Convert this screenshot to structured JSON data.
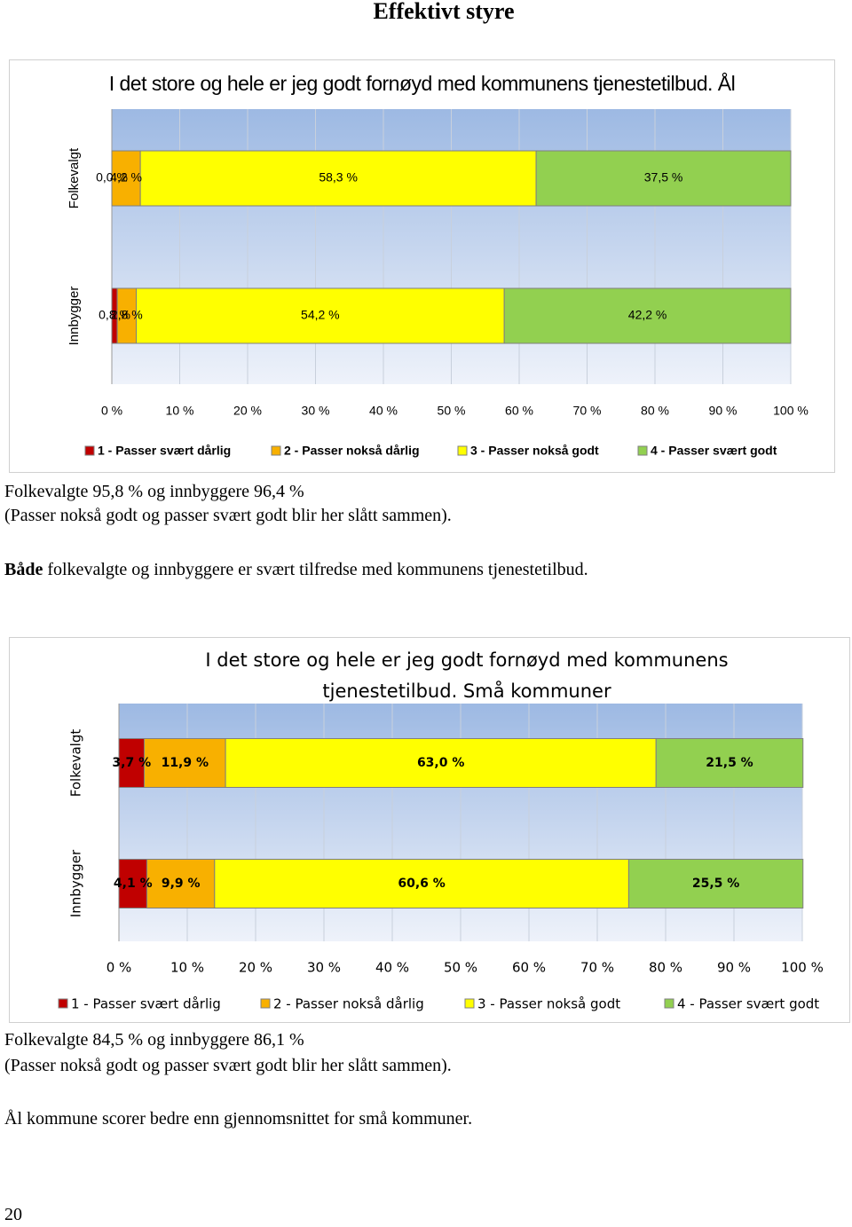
{
  "heading": "Effektivt styre",
  "chart_data": [
    {
      "type": "stacked-bar-horizontal",
      "title": "I det store og hele er jeg godt fornøyd med kommunens tjenestetilbud. Ål",
      "categories": [
        "Folkevalgt",
        "Innbygger"
      ],
      "series": [
        {
          "name": "1 - Passer svært dårlig",
          "color": "#c00000",
          "values": [
            0.0,
            0.8
          ],
          "value_labels": [
            "0,0 %",
            "0,8 %"
          ]
        },
        {
          "name": "2 - Passer nokså dårlig",
          "color": "#f8b000",
          "values": [
            4.2,
            2.8
          ],
          "value_labels": [
            "4,2 %",
            "2,8 %"
          ]
        },
        {
          "name": "3 - Passer nokså godt",
          "color": "#ffff00",
          "values": [
            58.3,
            54.2
          ],
          "value_labels": [
            "58,3 %",
            "54,2 %"
          ]
        },
        {
          "name": "4 - Passer svært godt",
          "color": "#92d050",
          "values": [
            37.5,
            42.2
          ],
          "value_labels": [
            "37,5 %",
            "42,2 %"
          ]
        }
      ],
      "xlim": [
        0,
        100
      ],
      "xticks": [
        {
          "value": 0,
          "label": "0 %"
        },
        {
          "value": 10,
          "label": "10 %"
        },
        {
          "value": 20,
          "label": "20 %"
        },
        {
          "value": 30,
          "label": "30 %"
        },
        {
          "value": 40,
          "label": "40 %"
        },
        {
          "value": 50,
          "label": "50 %"
        },
        {
          "value": 60,
          "label": "60 %"
        },
        {
          "value": 70,
          "label": "70 %"
        },
        {
          "value": 80,
          "label": "80 %"
        },
        {
          "value": 90,
          "label": "90 %"
        },
        {
          "value": 100,
          "label": "100 %"
        }
      ],
      "grid": true,
      "legend": "bottom"
    },
    {
      "type": "stacked-bar-horizontal",
      "title": "I det store og hele er jeg godt fornøyd med kommunens tjenestetilbud. Små kommuner",
      "categories": [
        "Folkevalgt",
        "Innbygger"
      ],
      "series": [
        {
          "name": "1 - Passer svært dårlig",
          "color": "#c00000",
          "values": [
            3.7,
            4.1
          ],
          "value_labels": [
            "3,7 %",
            "4,1 %"
          ]
        },
        {
          "name": "2 - Passer nokså dårlig",
          "color": "#f8b000",
          "values": [
            11.9,
            9.9
          ],
          "value_labels": [
            "11,9 %",
            "9,9 %"
          ]
        },
        {
          "name": "3 - Passer nokså godt",
          "color": "#ffff00",
          "values": [
            63.0,
            60.6
          ],
          "value_labels": [
            "63,0 %",
            "60,6 %"
          ]
        },
        {
          "name": "4 - Passer svært godt",
          "color": "#92d050",
          "values": [
            21.5,
            25.5
          ],
          "value_labels": [
            "21,5 %",
            "25,5 %"
          ]
        }
      ],
      "xlim": [
        0,
        100
      ],
      "xticks": [
        {
          "value": 0,
          "label": "0 %"
        },
        {
          "value": 10,
          "label": "10 %"
        },
        {
          "value": 20,
          "label": "20 %"
        },
        {
          "value": 30,
          "label": "30 %"
        },
        {
          "value": 40,
          "label": "40 %"
        },
        {
          "value": 50,
          "label": "50 %"
        },
        {
          "value": 60,
          "label": "60 %"
        },
        {
          "value": 70,
          "label": "70 %"
        },
        {
          "value": 80,
          "label": "80 %"
        },
        {
          "value": 90,
          "label": "90 %"
        },
        {
          "value": 100,
          "label": "100 %"
        }
      ],
      "grid": true,
      "legend": "bottom"
    }
  ],
  "text1": {
    "lines": [
      "Folkevalgte 95,8 % og innbyggere 96,4 %",
      "(Passer nokså godt og passer svært godt blir her slått sammen)."
    ],
    "conclusion": {
      "bold": "Både",
      "text": "folkevalgte og innbyggere er svært tilfredse med kommunens tjenestetilbud."
    }
  },
  "text2": {
    "lines": [
      "Folkevalgte 84,5 % og innbyggere 86,1 %",
      "(Passer nokså godt og passer svært godt blir her slått sammen)."
    ],
    "conclusion": "Ål kommune scorer bedre enn gjennomsnittet for små kommuner."
  },
  "page_number": "20"
}
